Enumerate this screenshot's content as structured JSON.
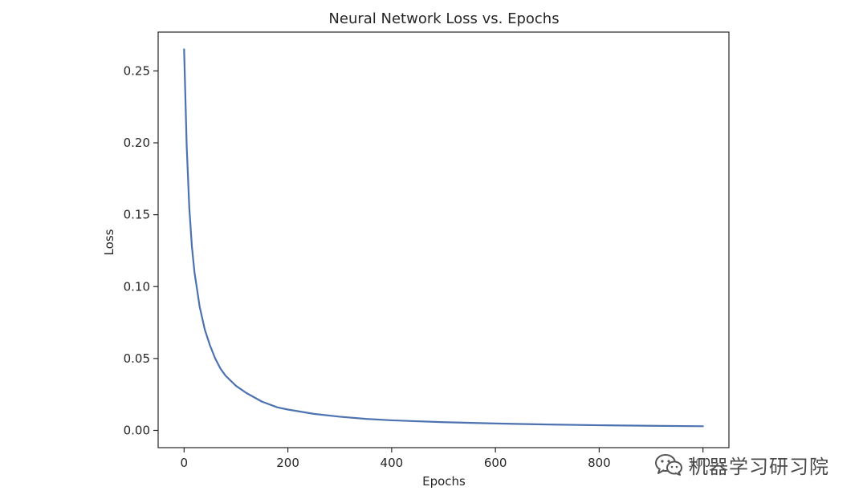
{
  "chart_data": {
    "type": "line",
    "title": "Neural Network Loss vs. Epochs",
    "xlabel": "Epochs",
    "ylabel": "Loss",
    "xlim": [
      -50,
      1050
    ],
    "ylim": [
      -0.012,
      0.277
    ],
    "x_ticks": [
      0,
      200,
      400,
      600,
      800,
      1000
    ],
    "x_tick_labels": [
      "0",
      "200",
      "400",
      "600",
      "800",
      "1000"
    ],
    "y_ticks": [
      0.0,
      0.05,
      0.1,
      0.15,
      0.2,
      0.25
    ],
    "y_tick_labels": [
      "0.00",
      "0.05",
      "0.10",
      "0.15",
      "0.20",
      "0.25"
    ],
    "grid": false,
    "series": [
      {
        "color": "#4c72b0",
        "x": [
          0,
          5,
          10,
          15,
          20,
          30,
          40,
          50,
          60,
          70,
          80,
          100,
          120,
          150,
          180,
          200,
          250,
          300,
          350,
          400,
          500,
          600,
          700,
          800,
          900,
          1000
        ],
        "y": [
          0.265,
          0.198,
          0.155,
          0.128,
          0.11,
          0.086,
          0.07,
          0.059,
          0.05,
          0.043,
          0.038,
          0.031,
          0.026,
          0.02,
          0.016,
          0.0145,
          0.0115,
          0.0095,
          0.008,
          0.007,
          0.0057,
          0.0048,
          0.0041,
          0.0036,
          0.0032,
          0.0029
        ]
      }
    ]
  },
  "watermark": {
    "text": "机器学习研习院",
    "logo": "wechat-logo-icon"
  }
}
